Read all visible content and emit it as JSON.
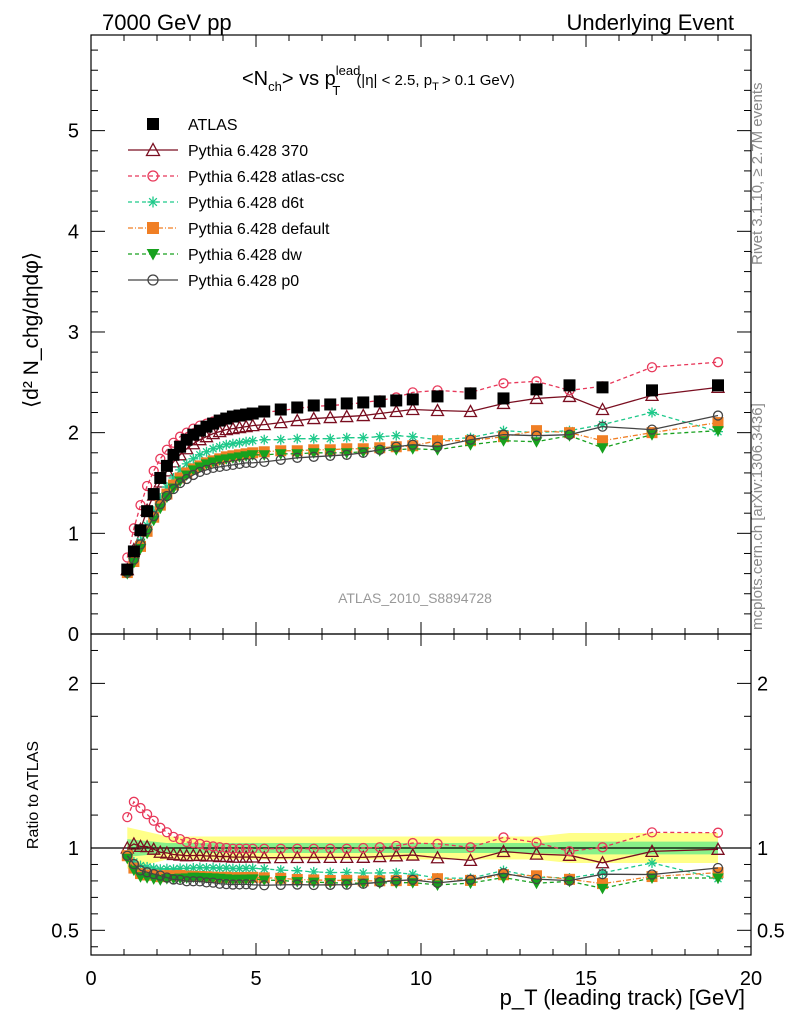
{
  "header": {
    "left": "7000 GeV pp",
    "right": "Underlying Event"
  },
  "plot_title": {
    "main": "<N",
    "main_sub": "ch",
    "main_mid": "> vs p",
    "main_sup": "lead",
    "main_sub2": "T",
    "cuts": "(|η| < 2.5, p",
    "cuts_sub": "T",
    "cuts_end": "> 0.1 GeV)"
  },
  "side_labels": {
    "rivet": "Rivet 3.1.10, ≥ 2.7M events",
    "mcplots": "mcplots.cern.ch [arXiv:1306.3436]"
  },
  "analysis_id": "ATLAS_2010_S8894728",
  "axes": {
    "ylabel_main": "⟨d² N_chg/dηdφ⟩",
    "ylabel_ratio": "Ratio to ATLAS",
    "xlabel": "p_T (leading track) [GeV]"
  },
  "legend": [
    {
      "label": "ATLAS"
    },
    {
      "label": "Pythia 6.428 370"
    },
    {
      "label": "Pythia 6.428 atlas-csc"
    },
    {
      "label": "Pythia 6.428 d6t"
    },
    {
      "label": "Pythia 6.428 default"
    },
    {
      "label": "Pythia 6.428 dw"
    },
    {
      "label": "Pythia 6.428 p0"
    }
  ],
  "chart_data": {
    "type": "scatter",
    "x": [
      1.1,
      1.3,
      1.5,
      1.7,
      1.9,
      2.1,
      2.3,
      2.5,
      2.7,
      2.9,
      3.1,
      3.3,
      3.5,
      3.7,
      3.9,
      4.1,
      4.3,
      4.5,
      4.7,
      4.9,
      5.25,
      5.75,
      6.25,
      6.75,
      7.25,
      7.75,
      8.25,
      8.75,
      9.25,
      9.75,
      10.5,
      11.5,
      12.5,
      13.5,
      14.5,
      15.5,
      17,
      19
    ],
    "xlim": [
      0,
      20
    ],
    "xticks": [
      0,
      5,
      10,
      15,
      20
    ],
    "main_ylim": [
      0,
      5.95
    ],
    "main_yticks": [
      0,
      1,
      2,
      3,
      4,
      5
    ],
    "ratio_ylim": [
      0.35,
      2.3
    ],
    "ratio_yticks": [
      0.5,
      1,
      2
    ],
    "ratio_bands": {
      "stat": 0.03,
      "total": 0.07
    },
    "series": [
      {
        "name": "ATLAS",
        "color": "#000000",
        "marker": "square",
        "dash": "none",
        "values": [
          0.64,
          0.82,
          1.03,
          1.22,
          1.39,
          1.55,
          1.67,
          1.78,
          1.86,
          1.93,
          1.98,
          2.02,
          2.06,
          2.09,
          2.12,
          2.14,
          2.16,
          2.17,
          2.18,
          2.19,
          2.21,
          2.23,
          2.25,
          2.27,
          2.28,
          2.29,
          2.3,
          2.31,
          2.32,
          2.33,
          2.36,
          2.39,
          2.34,
          2.43,
          2.47,
          2.45,
          2.42,
          2.47
        ]
      },
      {
        "name": "Pythia 6.428 370",
        "color": "#7a0e20",
        "marker": "triangle-open",
        "dash": "none",
        "values": [
          0.64,
          0.84,
          1.04,
          1.23,
          1.38,
          1.51,
          1.62,
          1.71,
          1.78,
          1.84,
          1.89,
          1.93,
          1.96,
          1.99,
          2.01,
          2.03,
          2.04,
          2.05,
          2.06,
          2.07,
          2.08,
          2.1,
          2.12,
          2.14,
          2.15,
          2.16,
          2.17,
          2.19,
          2.21,
          2.23,
          2.22,
          2.21,
          2.29,
          2.34,
          2.36,
          2.23,
          2.37,
          2.45
        ]
      },
      {
        "name": "Pythia 6.428 atlas-csc",
        "color": "#e8385a",
        "marker": "circle-open",
        "dash": "4,3",
        "values": [
          0.76,
          1.05,
          1.28,
          1.47,
          1.62,
          1.74,
          1.83,
          1.9,
          1.96,
          2.0,
          2.04,
          2.07,
          2.09,
          2.11,
          2.13,
          2.14,
          2.15,
          2.16,
          2.17,
          2.18,
          2.2,
          2.22,
          2.24,
          2.26,
          2.27,
          2.28,
          2.3,
          2.32,
          2.35,
          2.4,
          2.42,
          2.4,
          2.49,
          2.51,
          2.42,
          2.46,
          2.65,
          2.7
        ]
      },
      {
        "name": "Pythia 6.428 d6t",
        "color": "#1ec98a",
        "marker": "asterisk",
        "dash": "4,3",
        "values": [
          0.61,
          0.75,
          0.92,
          1.08,
          1.22,
          1.35,
          1.46,
          1.55,
          1.63,
          1.69,
          1.74,
          1.78,
          1.81,
          1.84,
          1.86,
          1.88,
          1.89,
          1.9,
          1.91,
          1.92,
          1.93,
          1.93,
          1.94,
          1.94,
          1.94,
          1.95,
          1.95,
          1.96,
          1.97,
          1.96,
          1.93,
          1.95,
          2.02,
          2.0,
          2.02,
          2.08,
          2.2,
          2.01
        ]
      },
      {
        "name": "Pythia 6.428 default",
        "color": "#f07f25",
        "marker": "square",
        "dash": "5,2,1,2",
        "values": [
          0.61,
          0.72,
          0.87,
          1.02,
          1.16,
          1.28,
          1.39,
          1.48,
          1.55,
          1.6,
          1.64,
          1.67,
          1.7,
          1.72,
          1.74,
          1.76,
          1.77,
          1.78,
          1.79,
          1.8,
          1.81,
          1.82,
          1.82,
          1.83,
          1.83,
          1.84,
          1.84,
          1.85,
          1.86,
          1.87,
          1.92,
          1.92,
          1.96,
          2.02,
          2.0,
          1.92,
          2.0,
          2.1
        ]
      },
      {
        "name": "Pythia 6.428 dw",
        "color": "#17a11e",
        "marker": "triangle-down",
        "dash": "4,3",
        "values": [
          0.6,
          0.71,
          0.85,
          1.0,
          1.13,
          1.25,
          1.36,
          1.45,
          1.52,
          1.58,
          1.63,
          1.66,
          1.69,
          1.71,
          1.73,
          1.74,
          1.75,
          1.76,
          1.77,
          1.78,
          1.78,
          1.79,
          1.79,
          1.8,
          1.8,
          1.8,
          1.81,
          1.82,
          1.83,
          1.84,
          1.83,
          1.88,
          1.92,
          1.91,
          1.97,
          1.85,
          1.98,
          2.02
        ]
      },
      {
        "name": "Pythia 6.428 p0",
        "color": "#444444",
        "marker": "circle-open",
        "dash": "none",
        "values": [
          0.61,
          0.74,
          0.89,
          1.04,
          1.17,
          1.29,
          1.37,
          1.44,
          1.5,
          1.54,
          1.58,
          1.61,
          1.63,
          1.65,
          1.66,
          1.67,
          1.68,
          1.69,
          1.7,
          1.7,
          1.71,
          1.73,
          1.75,
          1.76,
          1.77,
          1.78,
          1.8,
          1.83,
          1.86,
          1.88,
          1.86,
          1.93,
          1.98,
          1.97,
          1.98,
          2.06,
          2.03,
          2.17
        ]
      }
    ]
  }
}
